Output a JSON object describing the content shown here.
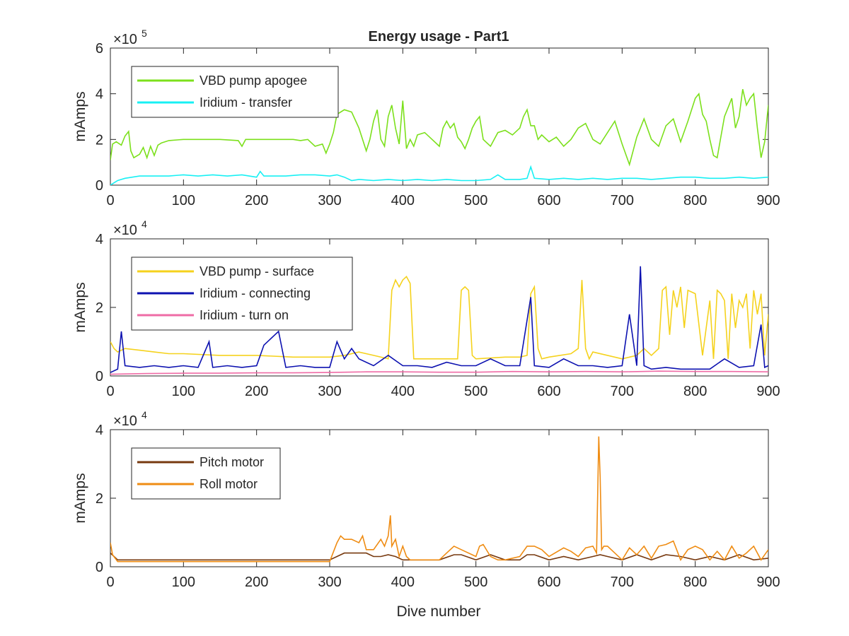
{
  "figure": {
    "title": "Energy usage - Part1",
    "background": "#ffffff"
  },
  "chart_data": [
    {
      "type": "line",
      "title": "Energy usage - Part1",
      "xlabel": "",
      "ylabel": "mAmps",
      "xlim": [
        0,
        900
      ],
      "ylim": [
        0,
        600000
      ],
      "y_exponent_label": "× 10^5",
      "y_exponent": "5",
      "xticks": [
        "0",
        "100",
        "200",
        "300",
        "400",
        "500",
        "600",
        "700",
        "800",
        "900"
      ],
      "yticks": [
        "0",
        "2",
        "4",
        "6"
      ],
      "legend_position": "top-left",
      "grid": false,
      "series": [
        {
          "name": "VBD pump apogee",
          "color": "#7ce01c",
          "x": [
            0,
            3,
            8,
            15,
            20,
            25,
            28,
            32,
            40,
            45,
            50,
            55,
            60,
            65,
            70,
            80,
            100,
            150,
            175,
            180,
            185,
            200,
            250,
            260,
            270,
            280,
            290,
            295,
            300,
            305,
            310,
            320,
            330,
            340,
            350,
            355,
            360,
            365,
            370,
            375,
            380,
            385,
            390,
            395,
            400,
            405,
            410,
            415,
            420,
            430,
            440,
            450,
            455,
            460,
            465,
            470,
            475,
            480,
            485,
            490,
            495,
            500,
            505,
            510,
            520,
            530,
            540,
            550,
            560,
            565,
            570,
            575,
            580,
            585,
            590,
            600,
            610,
            620,
            630,
            640,
            650,
            660,
            670,
            680,
            690,
            700,
            710,
            720,
            730,
            740,
            750,
            760,
            770,
            780,
            790,
            800,
            805,
            810,
            815,
            820,
            825,
            830,
            835,
            840,
            845,
            850,
            855,
            860,
            865,
            870,
            875,
            880,
            885,
            890,
            895,
            900
          ],
          "y": [
            110000,
            180000,
            190000,
            175000,
            215000,
            235000,
            150000,
            120000,
            135000,
            165000,
            120000,
            170000,
            130000,
            175000,
            185000,
            195000,
            200000,
            200000,
            195000,
            170000,
            200000,
            200000,
            200000,
            195000,
            200000,
            170000,
            180000,
            140000,
            180000,
            230000,
            310000,
            330000,
            320000,
            250000,
            150000,
            200000,
            280000,
            330000,
            200000,
            170000,
            300000,
            350000,
            250000,
            180000,
            370000,
            160000,
            200000,
            170000,
            220000,
            230000,
            200000,
            170000,
            250000,
            280000,
            250000,
            270000,
            210000,
            190000,
            160000,
            200000,
            250000,
            280000,
            300000,
            200000,
            170000,
            230000,
            240000,
            220000,
            250000,
            300000,
            330000,
            260000,
            260000,
            200000,
            220000,
            190000,
            210000,
            170000,
            200000,
            250000,
            270000,
            200000,
            180000,
            230000,
            280000,
            180000,
            90000,
            210000,
            290000,
            200000,
            170000,
            260000,
            290000,
            190000,
            280000,
            380000,
            400000,
            310000,
            280000,
            200000,
            130000,
            120000,
            210000,
            300000,
            340000,
            380000,
            250000,
            300000,
            420000,
            350000,
            380000,
            400000,
            250000,
            120000,
            190000,
            350000
          ]
        },
        {
          "name": "Iridium - transfer",
          "color": "#18f0f4",
          "x": [
            0,
            10,
            20,
            40,
            60,
            80,
            100,
            120,
            140,
            160,
            180,
            200,
            205,
            210,
            240,
            260,
            280,
            300,
            310,
            320,
            330,
            340,
            360,
            380,
            400,
            420,
            440,
            460,
            480,
            500,
            520,
            530,
            540,
            560,
            570,
            575,
            580,
            600,
            620,
            640,
            660,
            680,
            700,
            720,
            740,
            760,
            780,
            800,
            820,
            840,
            860,
            880,
            900
          ],
          "y": [
            0,
            20000,
            30000,
            40000,
            40000,
            40000,
            45000,
            40000,
            45000,
            40000,
            45000,
            35000,
            60000,
            40000,
            40000,
            45000,
            45000,
            40000,
            45000,
            35000,
            20000,
            25000,
            20000,
            25000,
            20000,
            25000,
            20000,
            25000,
            20000,
            20000,
            25000,
            45000,
            25000,
            25000,
            30000,
            80000,
            30000,
            25000,
            30000,
            25000,
            30000,
            25000,
            30000,
            30000,
            25000,
            30000,
            35000,
            35000,
            30000,
            30000,
            35000,
            30000,
            35000
          ]
        }
      ]
    },
    {
      "type": "line",
      "title": "",
      "xlabel": "",
      "ylabel": "mAmps",
      "xlim": [
        0,
        900
      ],
      "ylim": [
        0,
        40000
      ],
      "y_exponent_label": "× 10^4",
      "y_exponent": "4",
      "xticks": [
        "0",
        "100",
        "200",
        "300",
        "400",
        "500",
        "600",
        "700",
        "800",
        "900"
      ],
      "yticks": [
        "0",
        "2",
        "4"
      ],
      "legend_position": "top-left",
      "grid": false,
      "series": [
        {
          "name": "VBD pump - surface",
          "color": "#f5d21d",
          "x": [
            0,
            5,
            10,
            20,
            40,
            60,
            80,
            100,
            150,
            200,
            250,
            300,
            320,
            340,
            360,
            380,
            385,
            390,
            395,
            400,
            405,
            410,
            415,
            420,
            440,
            460,
            475,
            480,
            485,
            490,
            495,
            500,
            540,
            560,
            570,
            575,
            580,
            585,
            590,
            600,
            630,
            640,
            645,
            650,
            655,
            660,
            700,
            720,
            730,
            740,
            750,
            755,
            760,
            765,
            770,
            775,
            780,
            785,
            790,
            800,
            810,
            820,
            825,
            830,
            835,
            840,
            845,
            850,
            855,
            860,
            865,
            870,
            875,
            880,
            885,
            890,
            895,
            900
          ],
          "y": [
            10000,
            8000,
            7000,
            8000,
            7500,
            7000,
            6500,
            6500,
            6000,
            6000,
            5500,
            5500,
            6000,
            7000,
            6000,
            5000,
            25000,
            28000,
            26000,
            28000,
            29000,
            27000,
            5000,
            5000,
            5000,
            5000,
            5000,
            25000,
            26000,
            25000,
            6000,
            5000,
            5500,
            5500,
            6000,
            24000,
            26000,
            8000,
            5000,
            5500,
            6500,
            8000,
            28000,
            8000,
            5000,
            7000,
            5000,
            6000,
            8000,
            6000,
            8000,
            25000,
            26000,
            12000,
            25000,
            20000,
            26000,
            14000,
            25000,
            24000,
            6000,
            22000,
            5000,
            25000,
            24000,
            22000,
            5000,
            24000,
            14000,
            22000,
            20000,
            24000,
            8000,
            25000,
            18000,
            24000,
            6000,
            18000
          ]
        },
        {
          "name": "Iridium - connecting",
          "color": "#0c11b0",
          "x": [
            0,
            10,
            15,
            20,
            40,
            60,
            80,
            100,
            120,
            135,
            140,
            160,
            180,
            200,
            210,
            230,
            240,
            260,
            280,
            300,
            310,
            320,
            330,
            340,
            360,
            380,
            400,
            420,
            440,
            460,
            480,
            500,
            520,
            540,
            560,
            575,
            580,
            600,
            620,
            640,
            660,
            680,
            700,
            710,
            720,
            725,
            730,
            740,
            760,
            780,
            800,
            820,
            840,
            860,
            880,
            890,
            895,
            900
          ],
          "y": [
            1000,
            2000,
            13000,
            3000,
            2500,
            3000,
            2500,
            3000,
            2500,
            10000,
            2500,
            3000,
            2500,
            3000,
            9000,
            13000,
            2500,
            3000,
            2500,
            2500,
            10000,
            5000,
            8000,
            5000,
            3000,
            6000,
            3000,
            3000,
            2500,
            4000,
            3000,
            3000,
            5000,
            3000,
            3000,
            23000,
            3000,
            2500,
            5000,
            3000,
            3000,
            2500,
            3000,
            18000,
            3000,
            32000,
            3000,
            2000,
            2500,
            2000,
            2000,
            2000,
            5000,
            2500,
            3000,
            15000,
            2500,
            3000
          ]
        },
        {
          "name": "Iridium - turn on",
          "color": "#ef6ca6",
          "x": [
            0,
            50,
            100,
            150,
            200,
            250,
            300,
            350,
            400,
            450,
            500,
            550,
            600,
            650,
            700,
            750,
            800,
            850,
            900
          ],
          "y": [
            500,
            700,
            800,
            800,
            900,
            900,
            1000,
            1200,
            1200,
            1100,
            1100,
            1300,
            1200,
            1300,
            1200,
            1400,
            1300,
            1300,
            1200
          ]
        }
      ]
    },
    {
      "type": "line",
      "title": "",
      "xlabel": "Dive number",
      "ylabel": "mAmps",
      "xlim": [
        0,
        900
      ],
      "ylim": [
        0,
        40000
      ],
      "y_exponent_label": "× 10^4",
      "y_exponent": "4",
      "xticks": [
        "0",
        "100",
        "200",
        "300",
        "400",
        "500",
        "600",
        "700",
        "800",
        "900"
      ],
      "yticks": [
        "0",
        "2",
        "4"
      ],
      "legend_position": "top-left",
      "grid": false,
      "series": [
        {
          "name": "Pitch motor",
          "color": "#77390f",
          "x": [
            0,
            5,
            10,
            50,
            100,
            150,
            200,
            250,
            290,
            300,
            310,
            320,
            350,
            360,
            370,
            380,
            390,
            400,
            420,
            450,
            470,
            480,
            500,
            520,
            540,
            560,
            570,
            580,
            600,
            620,
            640,
            660,
            670,
            680,
            700,
            720,
            740,
            760,
            780,
            800,
            820,
            840,
            860,
            880,
            900
          ],
          "y": [
            4000,
            3000,
            2000,
            2000,
            2000,
            2000,
            2000,
            2000,
            2000,
            2000,
            3000,
            4000,
            4000,
            3000,
            3000,
            3500,
            3000,
            2000,
            2000,
            2000,
            3500,
            3500,
            2000,
            3500,
            2000,
            2000,
            3500,
            3500,
            2000,
            3000,
            2000,
            3000,
            3500,
            3000,
            2000,
            3500,
            2000,
            3500,
            3000,
            2000,
            3000,
            2000,
            3500,
            2000,
            2500
          ]
        },
        {
          "name": "Roll motor",
          "color": "#ef8c13",
          "x": [
            0,
            3,
            10,
            50,
            100,
            150,
            200,
            250,
            290,
            300,
            310,
            315,
            320,
            330,
            340,
            345,
            350,
            360,
            370,
            375,
            380,
            383,
            385,
            390,
            395,
            400,
            405,
            410,
            420,
            450,
            460,
            470,
            480,
            500,
            505,
            510,
            520,
            530,
            540,
            560,
            570,
            580,
            590,
            600,
            620,
            630,
            640,
            650,
            660,
            665,
            668,
            670,
            672,
            675,
            680,
            700,
            710,
            720,
            730,
            740,
            750,
            760,
            770,
            780,
            790,
            800,
            810,
            820,
            830,
            840,
            850,
            860,
            870,
            880,
            890,
            900
          ],
          "y": [
            7000,
            3500,
            1500,
            1500,
            1500,
            1500,
            1500,
            1500,
            1500,
            1500,
            7000,
            9000,
            8000,
            8000,
            7000,
            9000,
            5000,
            5000,
            8000,
            6000,
            9000,
            15000,
            6000,
            8000,
            3000,
            6000,
            3000,
            2000,
            2000,
            2000,
            4000,
            6000,
            5000,
            3000,
            6000,
            6500,
            3000,
            2000,
            2000,
            3000,
            6000,
            6000,
            5000,
            3000,
            5500,
            4500,
            3000,
            5500,
            6000,
            4000,
            38000,
            26000,
            5000,
            6000,
            6000,
            2000,
            5500,
            3500,
            6000,
            2500,
            6000,
            6500,
            7500,
            2000,
            5000,
            6000,
            5000,
            2000,
            4500,
            2000,
            6000,
            2500,
            4000,
            6000,
            2000,
            5000
          ]
        }
      ]
    }
  ]
}
